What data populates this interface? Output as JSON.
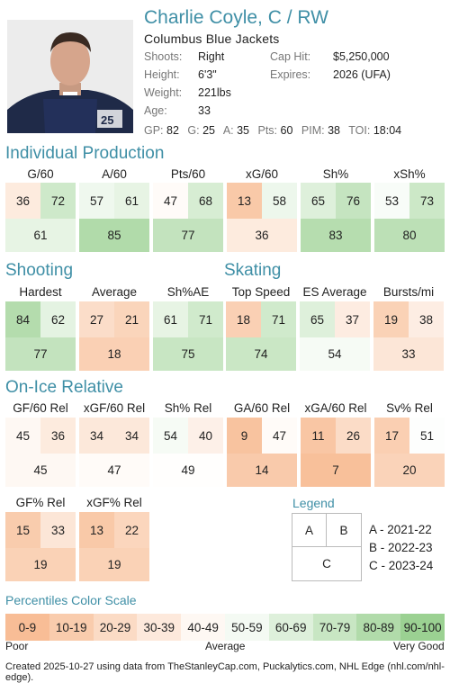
{
  "player": {
    "name": "Charlie Coyle, C / RW",
    "team": "Columbus Blue Jackets",
    "shoots_label": "Shoots:",
    "shoots": "Right",
    "height_label": "Height:",
    "height": "6'3\"",
    "weight_label": "Weight:",
    "weight": "221lbs",
    "age_label": "Age:",
    "age": "33",
    "caphit_label": "Cap Hit:",
    "caphit": "$5,250,000",
    "expires_label": "Expires:",
    "expires": "2026 (UFA)",
    "statline": [
      {
        "label": "GP:",
        "value": "82"
      },
      {
        "label": "G:",
        "value": "25"
      },
      {
        "label": "A:",
        "value": "35"
      },
      {
        "label": "Pts:",
        "value": "60"
      },
      {
        "label": "PIM:",
        "value": "38"
      },
      {
        "label": "TOI:",
        "value": "18:04"
      }
    ]
  },
  "sections": {
    "individual": "Individual Production",
    "shooting": "Shooting",
    "skating": "Skating",
    "onice": "On-Ice Relative"
  },
  "individual": [
    {
      "label": "G/60",
      "a": "36",
      "b": "72",
      "c": "61"
    },
    {
      "label": "A/60",
      "a": "57",
      "b": "61",
      "c": "85"
    },
    {
      "label": "Pts/60",
      "a": "47",
      "b": "68",
      "c": "77"
    },
    {
      "label": "xG/60",
      "a": "13",
      "b": "58",
      "c": "36"
    },
    {
      "label": "Sh%",
      "a": "65",
      "b": "76",
      "c": "83"
    },
    {
      "label": "xSh%",
      "a": "53",
      "b": "73",
      "c": "80"
    }
  ],
  "shooting": [
    {
      "label": "Hardest",
      "a": "84",
      "b": "62",
      "c": "77"
    },
    {
      "label": "Average",
      "a": "27",
      "b": "21",
      "c": "18"
    },
    {
      "label": "Sh%AE",
      "a": "61",
      "b": "71",
      "c": "75"
    }
  ],
  "skating": [
    {
      "label": "Top Speed",
      "a": "18",
      "b": "71",
      "c": "74"
    },
    {
      "label": "ES Average",
      "a": "65",
      "b": "37",
      "c": "54"
    },
    {
      "label": "Bursts/mi",
      "a": "19",
      "b": "38",
      "c": "33"
    }
  ],
  "onice": [
    {
      "label": "GF/60 Rel",
      "a": "45",
      "b": "36",
      "c": "45"
    },
    {
      "label": "xGF/60 Rel",
      "a": "34",
      "b": "34",
      "c": "47"
    },
    {
      "label": "Sh% Rel",
      "a": "54",
      "b": "40",
      "c": "49"
    },
    {
      "label": "GA/60 Rel",
      "a": "9",
      "b": "47",
      "c": "14"
    },
    {
      "label": "xGA/60 Rel",
      "a": "11",
      "b": "26",
      "c": "7"
    },
    {
      "label": "Sv% Rel",
      "a": "17",
      "b": "51",
      "c": "20"
    }
  ],
  "onice2": [
    {
      "label": "GF% Rel",
      "a": "15",
      "b": "33",
      "c": "19"
    },
    {
      "label": "xGF% Rel",
      "a": "13",
      "b": "22",
      "c": "19"
    }
  ],
  "legend": {
    "title": "Legend",
    "a": "A",
    "b": "B",
    "c": "C",
    "items": [
      "A - 2021-22",
      "B - 2022-23",
      "C - 2023-24"
    ]
  },
  "scale": {
    "title": "Percentiles Color Scale",
    "bins": [
      "0-9",
      "10-19",
      "20-29",
      "30-39",
      "40-49",
      "50-59",
      "60-69",
      "70-79",
      "80-89",
      "90-100"
    ],
    "poor": "Poor",
    "average": "Average",
    "good": "Very Good",
    "colors": {
      "low": "#f7b68a",
      "mid": "#ffffff",
      "high": "#90cc86"
    }
  },
  "footer": "Created 2025-10-27 using data from TheStanleyCap.com, Puckalytics.com, NHL Edge (nhl.com/nhl-edge)."
}
